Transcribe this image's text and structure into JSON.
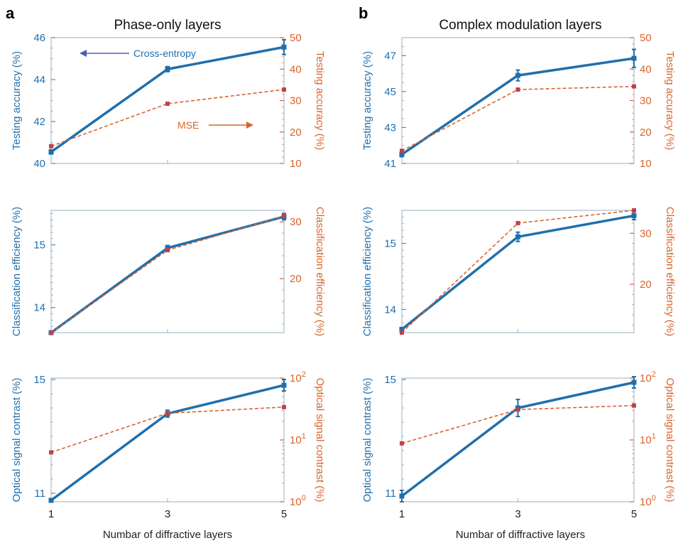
{
  "panel_letters": [
    "a",
    "b"
  ],
  "column_titles": [
    "Phase-only layers",
    "Complex modulation layers"
  ],
  "xlabel": "Numbar of diffractive layers",
  "colors": {
    "blue": "#1f6fad",
    "orange": "#d9642c",
    "axis": "#9ab0c2"
  },
  "annotations": {
    "cross_entropy": "Cross-entropy",
    "mse": "MSE"
  },
  "chart_data": [
    {
      "type": "line",
      "panel": "a",
      "row": 1,
      "x": [
        1,
        3,
        5
      ],
      "ylabel_left": "Testing accuracy (%)",
      "ylabel_right": "Testing accuracy (%)",
      "ylim_left": [
        40,
        46
      ],
      "yticks_left": [
        40,
        42,
        44,
        46
      ],
      "ylim_right": [
        10,
        50
      ],
      "yticks_right": [
        10,
        20,
        30,
        40,
        50
      ],
      "series": [
        {
          "axis": "left",
          "color": "#1f6fad",
          "values": [
            40.55,
            44.5,
            45.55
          ],
          "err": [
            0.1,
            0.12,
            0.35
          ]
        },
        {
          "axis": "right",
          "color": "#d9642c",
          "values": [
            15.5,
            29.0,
            33.5
          ]
        }
      ]
    },
    {
      "type": "line",
      "panel": "b",
      "row": 1,
      "x": [
        1,
        3,
        5
      ],
      "ylabel_left": "Testing accuracy (%)",
      "ylabel_right": "Testing accuracy (%)",
      "ylim_left": [
        41,
        48
      ],
      "yticks_left": [
        41,
        43,
        45,
        47
      ],
      "ylim_right": [
        10,
        50
      ],
      "yticks_right": [
        10,
        20,
        30,
        40,
        50
      ],
      "series": [
        {
          "axis": "left",
          "color": "#1f6fad",
          "values": [
            41.5,
            45.9,
            46.85
          ],
          "err": [
            0.12,
            0.3,
            0.5
          ]
        },
        {
          "axis": "right",
          "color": "#d9642c",
          "values": [
            14.0,
            33.5,
            34.5
          ]
        }
      ]
    },
    {
      "type": "line",
      "panel": "a",
      "row": 2,
      "x": [
        1,
        3,
        5
      ],
      "ylabel_left": "Classification efficiency (%)",
      "ylabel_right": "Classification efficiency (%)",
      "ylim_left": [
        13.6,
        15.55
      ],
      "yticks_left": [
        14,
        15
      ],
      "ylim_right": [
        10.5,
        32
      ],
      "yticks_right": [
        20,
        30
      ],
      "series": [
        {
          "axis": "left",
          "color": "#1f6fad",
          "values": [
            13.6,
            14.95,
            15.45
          ],
          "err": [
            0.0,
            0.04,
            0.05
          ]
        },
        {
          "axis": "right",
          "color": "#d9642c",
          "values": [
            10.5,
            25.0,
            31.0
          ]
        }
      ]
    },
    {
      "type": "line",
      "panel": "b",
      "row": 2,
      "x": [
        1,
        3,
        5
      ],
      "ylabel_left": "Classification efficiency (%)",
      "ylabel_right": "Classification efficiency (%)",
      "ylim_left": [
        13.65,
        15.5
      ],
      "yticks_left": [
        14,
        15
      ],
      "ylim_right": [
        10.5,
        34.5
      ],
      "yticks_right": [
        20,
        30
      ],
      "series": [
        {
          "axis": "left",
          "color": "#1f6fad",
          "values": [
            13.7,
            15.1,
            15.42
          ],
          "err": [
            0.0,
            0.07,
            0.06
          ]
        },
        {
          "axis": "right",
          "color": "#d9642c",
          "values": [
            10.5,
            32.0,
            34.5
          ]
        }
      ]
    },
    {
      "type": "line",
      "panel": "a",
      "row": 3,
      "x": [
        1,
        3,
        5
      ],
      "ylabel_left": "Optical signal contrast (%)",
      "ylabel_right": "Optical signal contrast (%)",
      "ylim_left": [
        10.7,
        15.05
      ],
      "yticks_left": [
        11,
        15
      ],
      "ylim_right": [
        1,
        100
      ],
      "yticks_right": [
        1,
        10,
        100
      ],
      "right_scale": "log",
      "series": [
        {
          "axis": "left",
          "color": "#1f6fad",
          "values": [
            10.75,
            13.8,
            14.8
          ],
          "err": [
            0.05,
            0.12,
            0.2
          ]
        },
        {
          "axis": "right",
          "color": "#d9642c",
          "values": [
            6.3,
            27.0,
            34.0
          ]
        }
      ]
    },
    {
      "type": "line",
      "panel": "b",
      "row": 3,
      "x": [
        1,
        3,
        5
      ],
      "ylabel_left": "Optical signal contrast (%)",
      "ylabel_right": "Optical signal contrast (%)",
      "ylim_left": [
        10.7,
        15.05
      ],
      "yticks_left": [
        11,
        15
      ],
      "ylim_right": [
        1,
        100
      ],
      "yticks_right": [
        1,
        10,
        100
      ],
      "right_scale": "log",
      "series": [
        {
          "axis": "left",
          "color": "#1f6fad",
          "values": [
            10.9,
            14.0,
            14.9
          ],
          "err": [
            0.2,
            0.3,
            0.2
          ]
        },
        {
          "axis": "right",
          "color": "#d9642c",
          "values": [
            8.8,
            31.0,
            36.0
          ]
        }
      ]
    }
  ]
}
